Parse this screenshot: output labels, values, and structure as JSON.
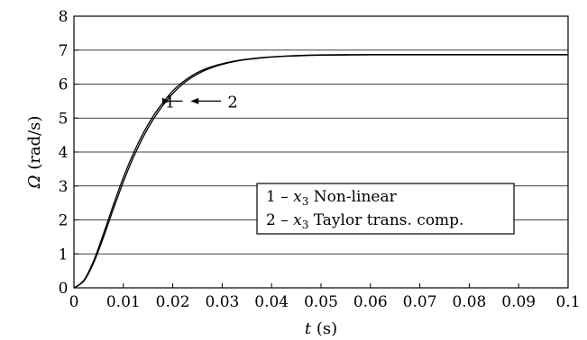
{
  "chart_data": {
    "type": "line",
    "title": "",
    "xlabel": "t (s)",
    "xlabel_var": "t",
    "xlabel_unit": " (s)",
    "ylabel": "Ω (rad/s)",
    "ylabel_var": "Ω",
    "ylabel_unit": " (rad/s)",
    "xlim": [
      0,
      0.1
    ],
    "ylim": [
      0,
      8
    ],
    "xticks": [
      0,
      0.01,
      0.02,
      0.03,
      0.04,
      0.05,
      0.06,
      0.07,
      0.08,
      0.09,
      0.1
    ],
    "xtick_labels": [
      "0",
      "0.01",
      "0.02",
      "0.03",
      "0.04",
      "0.05",
      "0.06",
      "0.07",
      "0.08",
      "0.09",
      "0.1"
    ],
    "yticks": [
      0,
      1,
      2,
      3,
      4,
      5,
      6,
      7,
      8
    ],
    "ytick_labels": [
      "0",
      "1",
      "2",
      "3",
      "4",
      "5",
      "6",
      "7",
      "8"
    ],
    "grid": "horizontal",
    "legend_position": "center-right",
    "series": [
      {
        "name": "1 – x3 Non-linear",
        "label": "1",
        "x": [
          0,
          0.002,
          0.004,
          0.006,
          0.008,
          0.01,
          0.012,
          0.014,
          0.016,
          0.018,
          0.02,
          0.022,
          0.024,
          0.026,
          0.028,
          0.03,
          0.033,
          0.036,
          0.04,
          0.045,
          0.05,
          0.06,
          0.07,
          0.08,
          0.09,
          0.1
        ],
        "y": [
          0,
          0.22,
          0.8,
          1.6,
          2.45,
          3.25,
          3.95,
          4.55,
          5.05,
          5.45,
          5.8,
          6.06,
          6.26,
          6.41,
          6.52,
          6.6,
          6.69,
          6.75,
          6.8,
          6.83,
          6.85,
          6.86,
          6.86,
          6.86,
          6.86,
          6.86
        ]
      },
      {
        "name": "2 – x3 Taylor trans. comp.",
        "label": "2",
        "x": [
          0,
          0.002,
          0.004,
          0.006,
          0.008,
          0.01,
          0.012,
          0.014,
          0.016,
          0.018,
          0.02,
          0.022,
          0.024,
          0.026,
          0.028,
          0.03,
          0.033,
          0.036,
          0.04,
          0.045,
          0.05,
          0.06,
          0.07,
          0.08,
          0.09,
          0.1
        ],
        "y": [
          0,
          0.2,
          0.74,
          1.5,
          2.33,
          3.12,
          3.83,
          4.44,
          4.95,
          5.37,
          5.72,
          6.0,
          6.21,
          6.37,
          6.49,
          6.58,
          6.68,
          6.74,
          6.8,
          6.84,
          6.86,
          6.87,
          6.87,
          6.87,
          6.87,
          6.87
        ]
      }
    ],
    "legend": {
      "entries": [
        {
          "prefix": "1 – ",
          "var": "x",
          "sub": "3",
          "text": " Non-linear"
        },
        {
          "prefix": "2 – ",
          "var": "x",
          "sub": "3",
          "text": " Taylor trans. comp."
        }
      ]
    },
    "annotations": {
      "curve1_label": "1",
      "curve2_label": "2",
      "curve1_label_at": {
        "x": 0.0085,
        "y": 5.5
      },
      "curve2_label_at": {
        "x": 0.0305,
        "y": 5.5
      }
    }
  }
}
